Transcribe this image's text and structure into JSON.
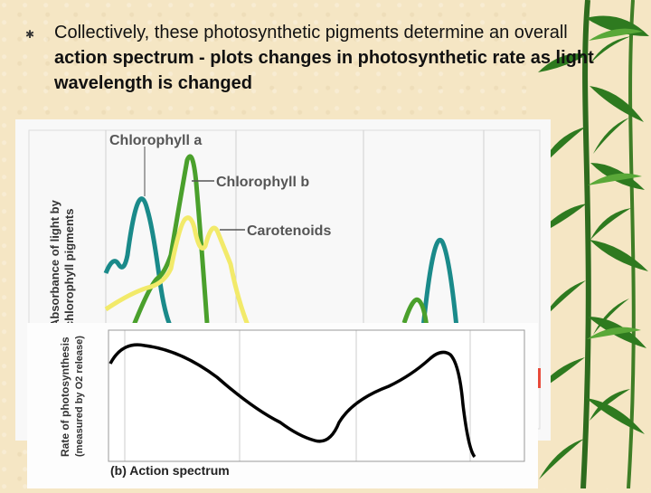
{
  "slide": {
    "bullet_icon": "asterisk-bullet-icon",
    "text_plain": "Collectively, these photosynthetic pigments determine an overall ",
    "text_bold": "action spectrum - plots changes in photosynthetic rate as light wavelength is changed"
  },
  "figure_a": {
    "ylabel_line1": "Absorbance of light by",
    "ylabel_line2": "chlorophyll pigments",
    "labels": {
      "chl_a": "Chlorophyll a",
      "chl_b": "Chlorophyll b",
      "carotenoids": "Carotenoids"
    },
    "colors": {
      "chl_a": "#1a8a8a",
      "chl_b": "#4aa02c",
      "carotenoids": "#f2ea6a"
    }
  },
  "figure_b": {
    "ylabel_line1": "Rate of photosynthesis",
    "ylabel_line2": "(measured by O2 release)",
    "caption": "(b) Action spectrum",
    "line_color": "#000000"
  }
}
